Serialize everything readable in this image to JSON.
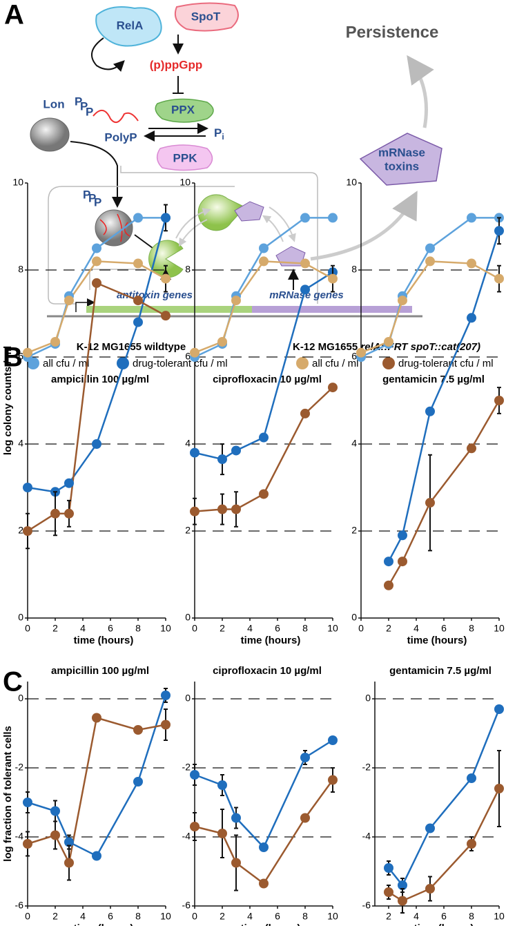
{
  "panel_labels": [
    "A",
    "B",
    "C"
  ],
  "diagram": {
    "rela": "RelA",
    "spot": "SpoT",
    "ppgpp": "(p)ppGpp",
    "ppx": "PPX",
    "ppk": "PPK",
    "polyp": "PolyP",
    "phosphate": "P",
    "pi_sub": "i",
    "lon": "Lon",
    "persistence": "Persistence",
    "toxins_line1": "mRNase",
    "toxins_line2": "toxins",
    "antitoxin_genes": "antitoxin genes",
    "mrnase_genes": "mRNase  genes"
  },
  "legend_groups": {
    "wildtype": "K-12 MG1655 wildtype",
    "mutant_prefix": "K-12 MG1655",
    "mutant_genotype": "relA::FRT spoT::cat(207)"
  },
  "chart_data": [
    {
      "type": "line",
      "title": "ampicillin 100 µg/ml",
      "xlabel": "time (hours)",
      "ylabel": "log colony counts / ml",
      "x": [
        0,
        2,
        3,
        5,
        8,
        10
      ],
      "xlim": [
        0,
        10
      ],
      "xticks": [
        0,
        2,
        4,
        6,
        8,
        10
      ],
      "ylim": [
        0,
        10
      ],
      "yticks": [
        0,
        2,
        4,
        6,
        8,
        10
      ],
      "grid": "dashed",
      "series": [
        {
          "name": "all cfu / ml",
          "color": "#5da2dc",
          "values": [
            6.0,
            6.3,
            7.4,
            8.5,
            9.2,
            9.2
          ]
        },
        {
          "name": "drug-tolerant cfu / ml",
          "color": "#1f6ebd",
          "values": [
            3.0,
            2.9,
            3.1,
            4.0,
            6.8,
            9.2
          ],
          "errors": [
            null,
            null,
            null,
            null,
            null,
            0.3
          ]
        },
        {
          "name": "all cfu / ml",
          "color": "#d6aa6b",
          "values": [
            6.1,
            6.35,
            7.3,
            8.2,
            8.15,
            7.8
          ],
          "errors": [
            null,
            null,
            null,
            null,
            null,
            0.3
          ]
        },
        {
          "name": "drug-tolerant cfu / ml",
          "color": "#9b5a2f",
          "values": [
            2.0,
            2.4,
            2.4,
            7.7,
            7.3,
            6.95
          ],
          "errors": [
            0.4,
            0.5,
            0.3,
            null,
            null,
            null
          ]
        }
      ]
    },
    {
      "type": "line",
      "title": "ciprofloxacin 10 µg/ml",
      "xlabel": "time (hours)",
      "x": [
        0,
        2,
        3,
        5,
        8,
        10
      ],
      "xlim": [
        0,
        10
      ],
      "xticks": [
        0,
        2,
        4,
        6,
        8,
        10
      ],
      "ylim": [
        0,
        10
      ],
      "yticks": [
        0,
        2,
        4,
        6,
        8,
        10
      ],
      "grid": "dashed",
      "series": [
        {
          "color": "#5da2dc",
          "values": [
            6.0,
            6.3,
            7.4,
            8.5,
            9.2,
            9.2
          ]
        },
        {
          "color": "#1f6ebd",
          "values": [
            3.8,
            3.65,
            3.85,
            4.15,
            7.55,
            7.95
          ],
          "errors": [
            null,
            0.35,
            null,
            null,
            null,
            null
          ]
        },
        {
          "color": "#d6aa6b",
          "values": [
            6.1,
            6.35,
            7.3,
            8.2,
            8.15,
            7.8
          ],
          "errors": [
            null,
            null,
            null,
            null,
            null,
            0.3
          ]
        },
        {
          "color": "#9b5a2f",
          "values": [
            2.45,
            2.5,
            2.5,
            2.85,
            4.7,
            5.3
          ],
          "errors": [
            0.3,
            0.35,
            0.4,
            null,
            null,
            null
          ]
        }
      ]
    },
    {
      "type": "line",
      "title": "gentamicin 7.5 µg/ml",
      "xlabel": "time (hours)",
      "x": [
        0,
        2,
        3,
        5,
        8,
        10
      ],
      "xlim": [
        0,
        10
      ],
      "xticks": [
        0,
        2,
        4,
        6,
        8,
        10
      ],
      "ylim": [
        0,
        10
      ],
      "yticks": [
        0,
        2,
        4,
        6,
        8,
        10
      ],
      "grid": "dashed",
      "series": [
        {
          "color": "#5da2dc",
          "values": [
            6.0,
            6.3,
            7.4,
            8.5,
            9.2,
            9.2
          ]
        },
        {
          "color": "#1f6ebd",
          "values": [
            null,
            1.3,
            1.9,
            4.75,
            6.9,
            8.9
          ],
          "errors": [
            null,
            null,
            null,
            null,
            null,
            0.3
          ]
        },
        {
          "color": "#d6aa6b",
          "values": [
            6.1,
            6.35,
            7.3,
            8.2,
            8.15,
            7.8
          ],
          "errors": [
            null,
            null,
            null,
            null,
            null,
            0.3
          ]
        },
        {
          "color": "#9b5a2f",
          "values": [
            null,
            0.75,
            1.3,
            2.65,
            3.9,
            5.0
          ],
          "errors": [
            null,
            null,
            null,
            1.1,
            null,
            0.3
          ]
        }
      ]
    },
    {
      "type": "line",
      "title": "ampicillin 100 µg/ml",
      "xlabel": "time (hours)",
      "ylabel": "log fraction of tolerant cells",
      "x": [
        0,
        2,
        3,
        5,
        8,
        10
      ],
      "xlim": [
        0,
        10
      ],
      "xticks": [
        0,
        2,
        4,
        6,
        8,
        10
      ],
      "ylim": [
        -6,
        0.5
      ],
      "yticks": [
        -6,
        -4,
        -2,
        0
      ],
      "grid": "dashed",
      "series": [
        {
          "color": "#1f6ebd",
          "values": [
            -3.0,
            -3.25,
            -4.15,
            -4.55,
            -2.4,
            0.1
          ],
          "errors": [
            0.3,
            0.3,
            0.2,
            null,
            null,
            0.2
          ]
        },
        {
          "color": "#9b5a2f",
          "values": [
            -4.2,
            -3.95,
            -4.75,
            -0.55,
            -0.9,
            -0.75
          ],
          "errors": [
            0.35,
            0.4,
            0.5,
            null,
            0.1,
            0.45
          ]
        }
      ]
    },
    {
      "type": "line",
      "title": "ciprofloxacin 10 µg/ml",
      "xlabel": "time (hours)",
      "x": [
        0,
        2,
        3,
        5,
        8,
        10
      ],
      "xlim": [
        0,
        10
      ],
      "xticks": [
        0,
        2,
        4,
        6,
        8,
        10
      ],
      "ylim": [
        -6,
        0.5
      ],
      "yticks": [
        -6,
        -4,
        -2,
        0
      ],
      "grid": "dashed",
      "series": [
        {
          "color": "#1f6ebd",
          "values": [
            -2.2,
            -2.5,
            -3.45,
            -4.3,
            -1.7,
            -1.2
          ],
          "errors": [
            0.3,
            0.3,
            0.3,
            null,
            0.2,
            null
          ]
        },
        {
          "color": "#9b5a2f",
          "values": [
            -3.7,
            -3.9,
            -4.75,
            -5.35,
            -3.45,
            -2.35
          ],
          "errors": [
            0.4,
            0.7,
            0.8,
            null,
            null,
            0.35
          ]
        }
      ]
    },
    {
      "type": "line",
      "title": "gentamicin 7.5 µg/ml",
      "xlabel": "time (hours)",
      "x": [
        0,
        2,
        3,
        5,
        8,
        10
      ],
      "xlim": [
        1,
        10
      ],
      "xticks": [
        2,
        4,
        6,
        8,
        10
      ],
      "ylim": [
        -6,
        0.5
      ],
      "yticks": [
        -6,
        -4,
        -2,
        0
      ],
      "grid": "dashed",
      "series": [
        {
          "color": "#1f6ebd",
          "values": [
            null,
            -4.9,
            -5.4,
            -3.75,
            -2.3,
            -0.3
          ],
          "errors": [
            null,
            0.2,
            0.2,
            null,
            null,
            null
          ]
        },
        {
          "color": "#9b5a2f",
          "values": [
            null,
            -5.6,
            -5.85,
            -5.5,
            -4.2,
            -2.6
          ],
          "errors": [
            null,
            0.2,
            0.35,
            0.35,
            0.2,
            1.1
          ]
        }
      ]
    }
  ]
}
